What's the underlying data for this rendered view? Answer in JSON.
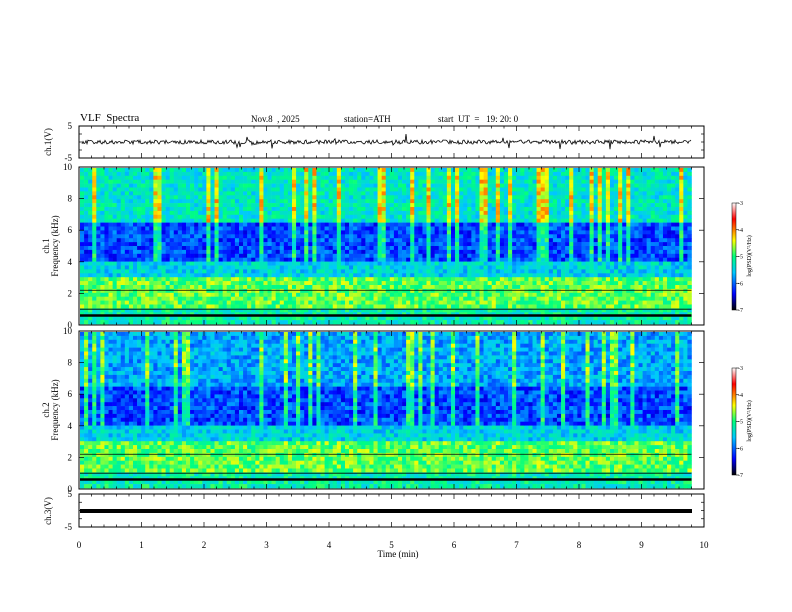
{
  "header": {
    "title": "VLF  Spectra",
    "date": "Nov.8  , 2025",
    "station": "station=ATH",
    "start": "start  UT  =   19: 20: 0"
  },
  "chart_data": [
    {
      "type": "line",
      "panel": "ch1-waveform",
      "ylabel": "ch.1(V)",
      "ylim": [
        -5,
        5
      ],
      "yticks": [
        "5",
        "-5"
      ],
      "xlim": [
        0,
        10
      ],
      "series": [
        {
          "description_value_mean": 0,
          "amplitude_range": [
            -1,
            1
          ]
        }
      ]
    },
    {
      "type": "heatmap",
      "panel": "ch1-spectrogram",
      "ylabel": "ch.1\nFrequency (kHz)",
      "ylabel_channel": "ch.1",
      "ylabel_axis": "Frequency (kHz)",
      "ylim": [
        0,
        10
      ],
      "yticks": [
        "0",
        "2",
        "4",
        "6",
        "8",
        "10"
      ],
      "xlim": [
        0,
        10
      ],
      "data_end_min": 9.8,
      "colorbar": {
        "label": "log(PSD)(V²/Hz)",
        "range": [
          -7,
          -3
        ],
        "ticks": [
          "-3",
          "-4",
          "-5",
          "-6",
          "-7"
        ]
      }
    },
    {
      "type": "heatmap",
      "panel": "ch2-spectrogram",
      "ylabel": "ch.2\nFrequency (kHz)",
      "ylabel_channel": "ch.2",
      "ylabel_axis": "Frequency (kHz)",
      "ylim": [
        0,
        10
      ],
      "yticks": [
        "0",
        "2",
        "4",
        "6",
        "8",
        "10"
      ],
      "xlim": [
        0,
        10
      ],
      "data_end_min": 9.8,
      "colorbar": {
        "label": "log(PSD)(V²/Hz)",
        "range": [
          -7,
          -3
        ],
        "ticks": [
          "-3",
          "-4",
          "-5",
          "-6",
          "-7"
        ]
      }
    },
    {
      "type": "line",
      "panel": "ch3-waveform",
      "ylabel": "ch.3(V)",
      "ylim": [
        -5,
        5
      ],
      "yticks": [
        "5",
        "-5"
      ],
      "xlim": [
        0,
        10
      ],
      "xlabel": "Time  (min)",
      "xticks": [
        "0",
        "1",
        "2",
        "3",
        "4",
        "5",
        "6",
        "7",
        "8",
        "9",
        "10"
      ],
      "series": [
        {
          "constant_value": 0
        }
      ]
    }
  ],
  "colors": {
    "colormap": [
      "#000000",
      "#0000ff",
      "#00c8ff",
      "#00ff7f",
      "#ffff00",
      "#ff0000",
      "#ffffff"
    ]
  }
}
